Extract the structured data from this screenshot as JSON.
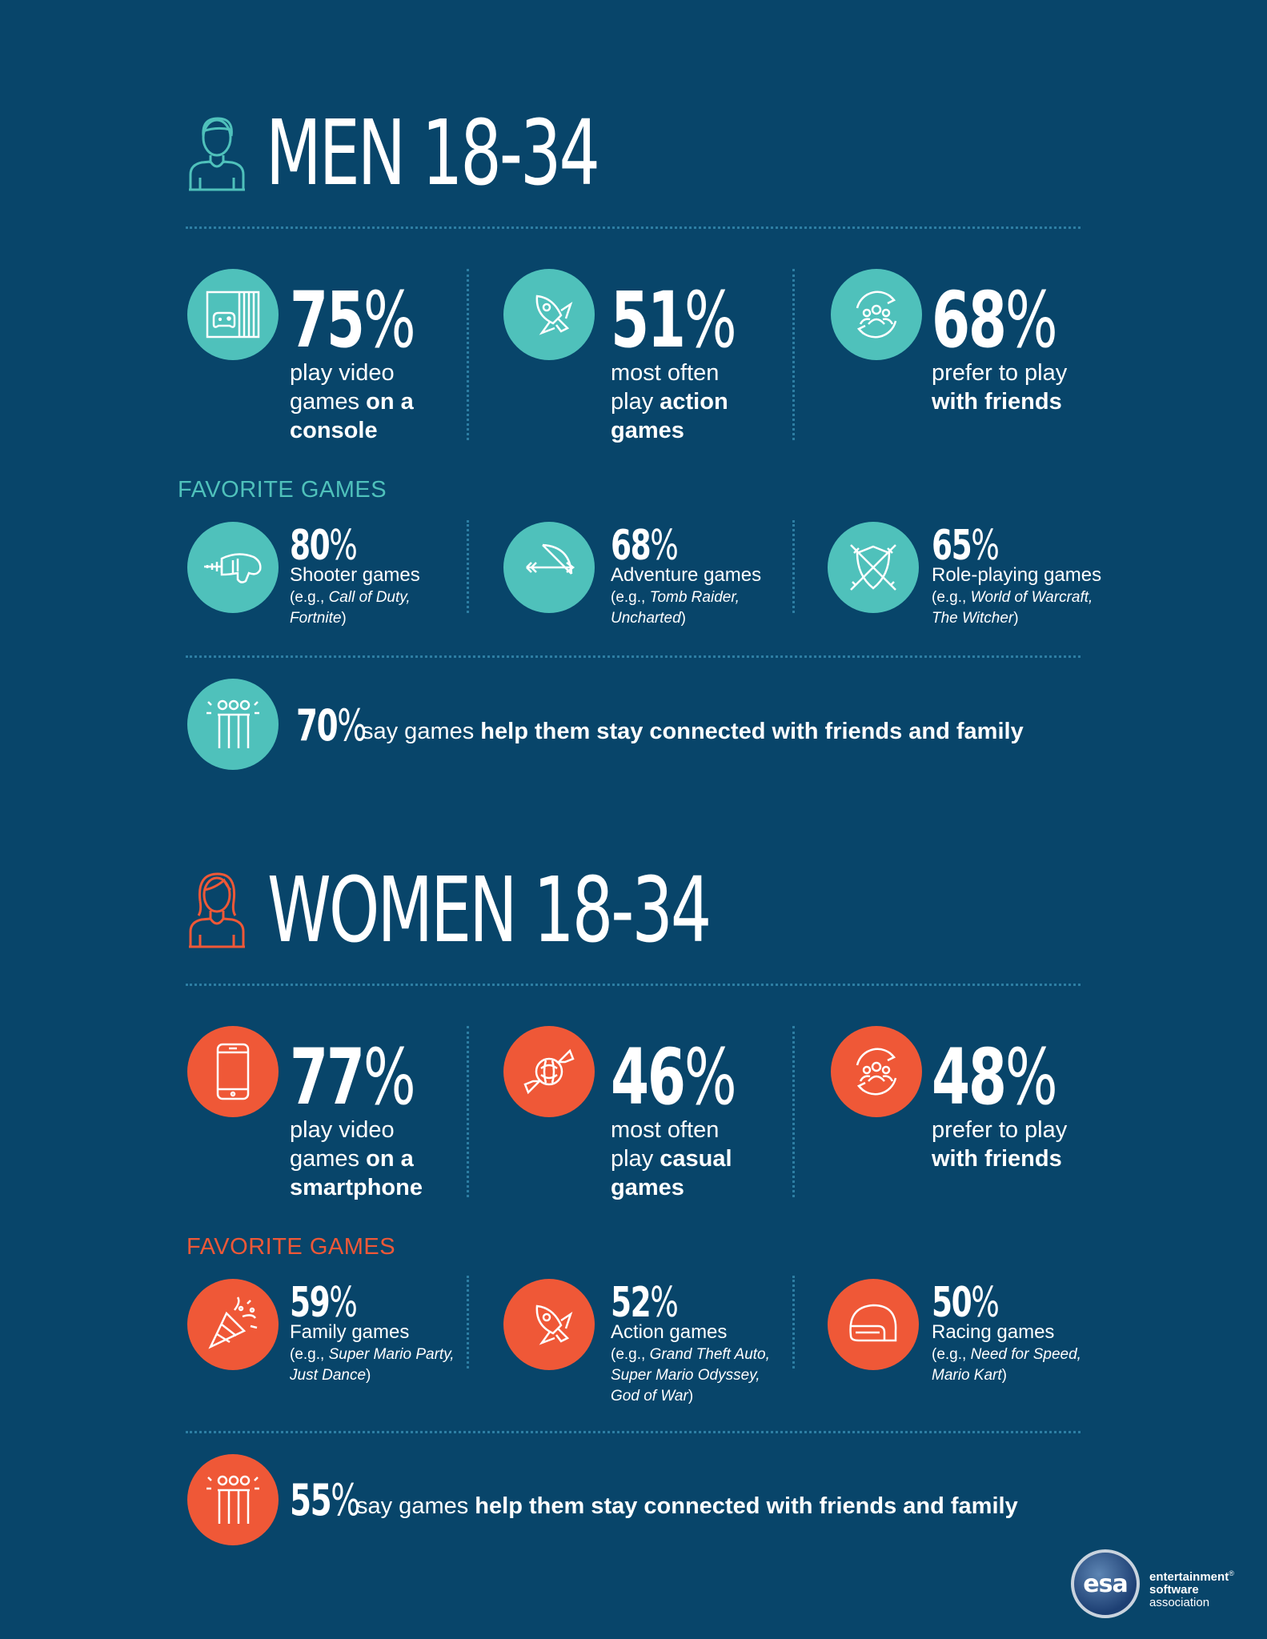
{
  "colors": {
    "background": "#08456a",
    "men_accent": "#4fc1bb",
    "women_accent": "#ef5837",
    "divider": "#2d7ea3"
  },
  "men": {
    "title": "MEN 18-34",
    "icon": "man-avatar-icon",
    "stats": [
      {
        "value": "75",
        "pct": "%",
        "pre": "play video games ",
        "bold": "on a console",
        "icon": "console-icon"
      },
      {
        "value": "51",
        "pct": "%",
        "pre": "most often play ",
        "bold": "action games",
        "icon": "rocket-icon"
      },
      {
        "value": "68",
        "pct": "%",
        "pre": "prefer to play ",
        "bold": "with friends",
        "icon": "friends-icon"
      }
    ],
    "favorites_title": "FAVORITE GAMES",
    "favorites": [
      {
        "value": "80",
        "pct": "%",
        "label": "Shooter games",
        "ex_pre": "(e.g., ",
        "ex_italic": "Call of Duty, Fortnite",
        "ex_post": ")",
        "icon": "blaster-icon"
      },
      {
        "value": "68",
        "pct": "%",
        "label": "Adventure games",
        "ex_pre": "(e.g., ",
        "ex_italic": "Tomb Raider, Uncharted",
        "ex_post": ")",
        "icon": "bow-arrow-icon"
      },
      {
        "value": "65",
        "pct": "%",
        "label": "Role-playing games",
        "ex_pre": "(e.g., ",
        "ex_italic": "World of Warcraft, The Witcher",
        "ex_post": ")",
        "icon": "shield-swords-icon"
      }
    ],
    "connected": {
      "value": "70",
      "pct": "%",
      "pre": "say games ",
      "bold": "help them stay connected with friends and family",
      "icon": "family-icon"
    }
  },
  "women": {
    "title": "WOMEN 18-34",
    "icon": "woman-avatar-icon",
    "stats": [
      {
        "value": "77",
        "pct": "%",
        "pre": "play video games ",
        "bold": "on a smartphone",
        "icon": "smartphone-icon"
      },
      {
        "value": "46",
        "pct": "%",
        "pre": "most often play ",
        "bold": "casual games",
        "icon": "candy-icon"
      },
      {
        "value": "48",
        "pct": "%",
        "pre": "prefer to play ",
        "bold": "with friends",
        "icon": "friends-icon"
      }
    ],
    "favorites_title": "FAVORITE GAMES",
    "favorites": [
      {
        "value": "59",
        "pct": "%",
        "label": "Family games",
        "ex_pre": "(e.g., ",
        "ex_italic": "Super Mario Party, Just Dance",
        "ex_post": ")",
        "icon": "party-popper-icon"
      },
      {
        "value": "52",
        "pct": "%",
        "label": "Action games",
        "ex_pre": "(e.g., ",
        "ex_italic": "Grand Theft Auto, Super Mario Odyssey, God of War",
        "ex_post": ")",
        "icon": "rocket-icon"
      },
      {
        "value": "50",
        "pct": "%",
        "label": "Racing games",
        "ex_pre": "(e.g., ",
        "ex_italic": "Need for Speed, Mario Kart",
        "ex_post": ")",
        "icon": "helmet-icon"
      }
    ],
    "connected": {
      "value": "55",
      "pct": "%",
      "pre": "say games ",
      "bold": "help them stay connected with friends and family",
      "icon": "family-icon"
    }
  },
  "logo": {
    "badge": "esa",
    "line1": "entertainment",
    "reg": "®",
    "line2": "software",
    "line3": "association"
  }
}
